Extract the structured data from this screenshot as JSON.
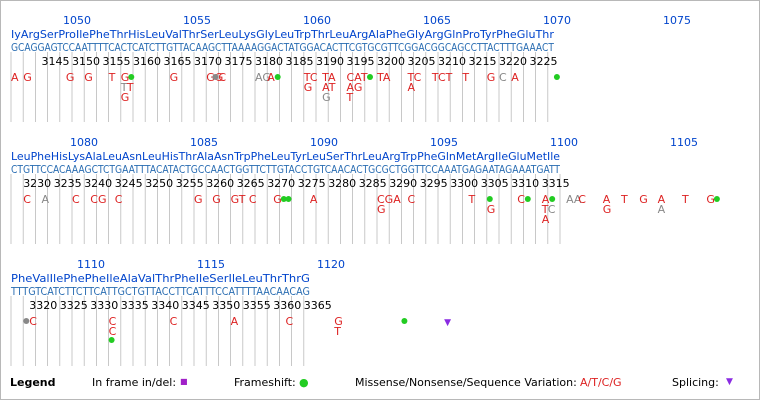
{
  "colors": {
    "codon_number": "#0044cc",
    "amino_acid": "#0044cc",
    "sequence": "#2a6db2",
    "ruler_number": "#000000",
    "variation": "#dd2222",
    "variation_alt": "#888888",
    "frameshift": "#22cc22",
    "inframe": "#a020c8",
    "splice": "#8a2be2",
    "grid_line": "#bbbbbb"
  },
  "rows": [
    {
      "codon_numbers": [
        "1050",
        "1055",
        "1060",
        "1065",
        "1070",
        "1075"
      ],
      "amino_acids": "IyArgSerProIlePheThrHisLeuValThrSerLeuLysGlyLeuTrpThrLeuArgAlaPheGlyArgGlnProTyrPheGluThr",
      "sequence": "GCAGGAGTCCAATTTTCACTCATCTTGTTACAAGCTTAAAAGGACTATGGACACTTCGTGCGTTCGGACGGCAGCCTTACTTTGAAACT",
      "ruler": [
        "3145",
        "3150",
        "3155",
        "3160",
        "3165",
        "3170",
        "3175",
        "3180",
        "3185",
        "3190",
        "3195",
        "3200",
        "3205",
        "3210",
        "3215",
        "3220",
        "3225"
      ],
      "variations": [
        {
          "pos": 0,
          "l1": "A"
        },
        {
          "pos": 2,
          "l1": "G"
        },
        {
          "pos": 9,
          "l1": "G"
        },
        {
          "pos": 12,
          "l1": "G"
        },
        {
          "pos": 16,
          "l1": "T"
        },
        {
          "pos": 18,
          "l1": "G",
          "fs": true,
          "l2": "T",
          "l2alt": true,
          "l3": "G"
        },
        {
          "pos": 19,
          "l2": "T"
        },
        {
          "pos": 26,
          "l1": "G"
        },
        {
          "pos": 32,
          "l1": "GG"
        },
        {
          "pos": 34,
          "l1": "C",
          "gray_dot": true
        },
        {
          "pos": 40,
          "l1": "AG",
          "alt": true
        },
        {
          "pos": 42,
          "l1": "A",
          "fs": true
        },
        {
          "pos": 48,
          "l1": "TC",
          "l2": "G"
        },
        {
          "pos": 51,
          "l1": "TA",
          "l2": "AT",
          "l3": "G",
          "l3alt": true
        },
        {
          "pos": 55,
          "l1": "CAT",
          "fs": true,
          "l2": "AG",
          "l3": "T"
        },
        {
          "pos": 60,
          "l1": "TA"
        },
        {
          "pos": 65,
          "l1": "TC",
          "l2": "A"
        },
        {
          "pos": 69,
          "l1": "TCT"
        },
        {
          "pos": 74,
          "l1": "T"
        },
        {
          "pos": 78,
          "l1": "G"
        },
        {
          "pos": 80,
          "l1": "C",
          "alt": true
        },
        {
          "pos": 82,
          "l1": "A"
        },
        {
          "pos": 89,
          "fs": true
        }
      ]
    },
    {
      "codon_numbers": [
        "1080",
        "1085",
        "1090",
        "1095",
        "1100",
        "1105"
      ],
      "amino_acids": "LeuPheHisLysAlaLeuAsnLeuHisThrAlaAsnTrpPheLeuTyrLeuSerThrLeuArgTrpPheGlnMetArgIleGluMetIle",
      "sequence": "CTGTTCCACAAAGCTCTGAATTTACATACTGCCAACTGGTTCTTGTACCTGTCAACACTGCGCTGGTTCCAAATGAGAATAGAAATGATT",
      "ruler": [
        "3230",
        "3235",
        "3240",
        "3245",
        "3250",
        "3255",
        "3260",
        "3265",
        "3270",
        "3275",
        "3280",
        "3285",
        "3290",
        "3295",
        "3300",
        "3305",
        "3310",
        "3315"
      ],
      "variations": [
        {
          "pos": 2,
          "l1": "C"
        },
        {
          "pos": 5,
          "l1": "A",
          "alt": true
        },
        {
          "pos": 10,
          "l1": "C"
        },
        {
          "pos": 13,
          "l1": "CG"
        },
        {
          "pos": 17,
          "l1": "C"
        },
        {
          "pos": 30,
          "l1": "G"
        },
        {
          "pos": 33,
          "l1": "G"
        },
        {
          "pos": 36,
          "l1": "GT"
        },
        {
          "pos": 39,
          "l1": "C"
        },
        {
          "pos": 43,
          "l1": "G",
          "fs": true
        },
        {
          "pos": 45,
          "fs": true
        },
        {
          "pos": 49,
          "l1": "A"
        },
        {
          "pos": 60,
          "l1": "CGA",
          "l2": "G"
        },
        {
          "pos": 65,
          "l1": "C"
        },
        {
          "pos": 75,
          "l1": "T"
        },
        {
          "pos": 78,
          "fs": true,
          "l2": "G"
        },
        {
          "pos": 83,
          "l1": "C",
          "fs": true
        },
        {
          "pos": 87,
          "l1": "A",
          "fs": true,
          "l2": "T",
          "l3": "A"
        },
        {
          "pos": 88,
          "l2": "C",
          "l2alt": true
        },
        {
          "pos": 91,
          "l1": "AA",
          "alt": true
        },
        {
          "pos": 93,
          "l1": "C"
        },
        {
          "pos": 97,
          "l1": "A",
          "l2": "G"
        },
        {
          "pos": 100,
          "l1": "T"
        },
        {
          "pos": 103,
          "l1": "G"
        },
        {
          "pos": 106,
          "l1": "A",
          "l2": "A",
          "l2alt": true
        },
        {
          "pos": 110,
          "l1": "T"
        },
        {
          "pos": 114,
          "l1": "G",
          "fs": true
        }
      ]
    },
    {
      "codon_numbers": [
        "1110",
        "1115",
        "1120"
      ],
      "amino_acids": "PheValIlePhePheIleAlaValThrPheIleSerIleLeuThrThrG",
      "sequence": "TTTGTCATCTTCTTCATTGCTGTTACCTTCATTTCCATTTTAACAACAG",
      "ruler": [
        "3320",
        "3325",
        "3330",
        "3335",
        "3340",
        "3345",
        "3350",
        "3355",
        "3360",
        "3365"
      ],
      "variations": [
        {
          "pos": 3,
          "l1": "C",
          "gray_dot": true
        },
        {
          "pos": 16,
          "l1": "C",
          "l2": "C",
          "fs2": true
        },
        {
          "pos": 26,
          "l1": "C"
        },
        {
          "pos": 36,
          "l1": "A"
        },
        {
          "pos": 45,
          "l1": "C"
        },
        {
          "pos": 53,
          "l1": "G",
          "l2": "T"
        },
        {
          "pos": 64,
          "fs": true
        },
        {
          "pos": 71,
          "splice": true
        }
      ]
    }
  ],
  "legend": {
    "title": "Legend",
    "inframe_label": "In frame in/del:",
    "inframe_symbol": "■",
    "frameshift_label": "Frameshift:",
    "frameshift_symbol": "●",
    "missense_label": "Missense/Nonsense/Sequence Variation:",
    "missense_bases": "A/T/C/G",
    "splicing_label": "Splicing:",
    "splicing_symbol": "▼"
  }
}
